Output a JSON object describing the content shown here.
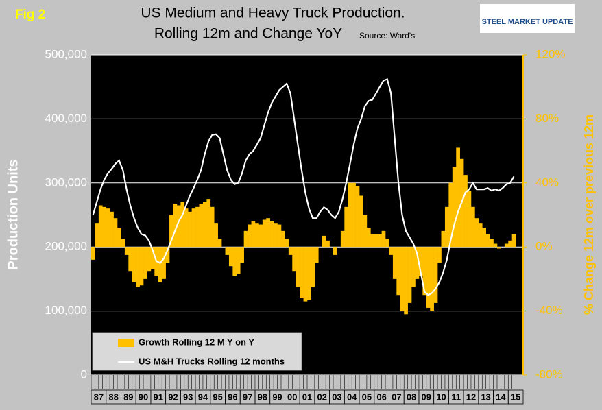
{
  "chart_data": {
    "type": "combo",
    "fig_label": "Fig 2",
    "title": [
      "US Medium and Heavy Truck Production.",
      "Rolling 12m and Change YoY"
    ],
    "source": "Source: Ward's",
    "logo": "STEEL MARKET UPDATE",
    "y_label": "Production Units",
    "y2_label": "% Change 12m over previous 12m",
    "categories": [
      "87",
      null,
      null,
      null,
      "88",
      null,
      null,
      null,
      "89",
      null,
      null,
      null,
      "90",
      null,
      null,
      null,
      "91",
      null,
      null,
      null,
      "92",
      null,
      null,
      null,
      "93",
      null,
      null,
      null,
      "94",
      null,
      null,
      null,
      "95",
      null,
      null,
      null,
      "96",
      null,
      null,
      null,
      "97",
      null,
      null,
      null,
      "98",
      null,
      null,
      null,
      "99",
      null,
      null,
      null,
      "00",
      null,
      null,
      null,
      "01",
      null,
      null,
      null,
      "02",
      null,
      null,
      null,
      "03",
      null,
      null,
      null,
      "04",
      null,
      null,
      null,
      "05",
      null,
      null,
      null,
      "06",
      null,
      null,
      null,
      "07",
      null,
      null,
      null,
      "08",
      null,
      null,
      null,
      "09",
      null,
      null,
      null,
      "10",
      null,
      null,
      null,
      "11",
      null,
      null,
      null,
      "12",
      null,
      null,
      null,
      "13",
      null,
      null,
      null,
      "14",
      null,
      null,
      null,
      "15",
      null
    ],
    "ylim": [
      0,
      500000
    ],
    "yticks": [
      0,
      {
        "value": 100000,
        "label": "100,000"
      },
      {
        "value": 200000,
        "label": "200,000"
      },
      {
        "value": 300000,
        "label": "300,000"
      },
      {
        "value": 400000,
        "label": "400,000"
      },
      {
        "value": 500000,
        "label": "500,000"
      }
    ],
    "y2lim": [
      -80,
      120
    ],
    "y2ticks": [
      {
        "value": -80,
        "label": "-80%"
      },
      {
        "value": -40,
        "label": "-40%"
      },
      {
        "value": 0,
        "label": "0%"
      },
      {
        "value": 40,
        "label": "40%"
      },
      {
        "value": 80,
        "label": "80%"
      },
      {
        "value": 120,
        "label": "120%"
      }
    ],
    "grid": true,
    "legend": "bottom-left",
    "series": [
      {
        "name": "Growth Rolling 12 M Y on Y",
        "type": "bar",
        "axis": "y2",
        "color": "#ffc000",
        "values": [
          -8,
          15,
          26,
          25,
          24,
          22,
          18,
          12,
          5,
          -5,
          -15,
          -22,
          -25,
          -24,
          -20,
          -15,
          -14,
          -18,
          -22,
          -20,
          -10,
          20,
          27,
          26,
          28,
          24,
          22,
          24,
          25,
          27,
          28,
          30,
          25,
          15,
          5,
          0,
          -5,
          -12,
          -18,
          -17,
          -10,
          10,
          14,
          16,
          15,
          14,
          17,
          18,
          16,
          15,
          14,
          10,
          5,
          -5,
          -15,
          -25,
          -32,
          -34,
          -33,
          -25,
          -10,
          0,
          7,
          4,
          0,
          -5,
          0,
          10,
          25,
          40,
          40,
          38,
          32,
          20,
          12,
          8,
          8,
          8,
          10,
          5,
          -5,
          -20,
          -30,
          -40,
          -42,
          -35,
          -25,
          -20,
          -18,
          -30,
          -38,
          -40,
          -35,
          -10,
          10,
          25,
          40,
          50,
          62,
          55,
          45,
          35,
          25,
          18,
          15,
          12,
          8,
          5,
          2,
          -1,
          0,
          2,
          4,
          8
        ]
      },
      {
        "name": "US M&H Trucks Rolling 12 months",
        "type": "line",
        "color": "#ffffff",
        "values": [
          250000,
          270000,
          290000,
          305000,
          315000,
          322000,
          330000,
          335000,
          320000,
          290000,
          265000,
          245000,
          230000,
          220000,
          218000,
          210000,
          195000,
          178000,
          175000,
          182000,
          195000,
          210000,
          225000,
          240000,
          250000,
          265000,
          280000,
          292000,
          305000,
          320000,
          345000,
          365000,
          375000,
          376000,
          370000,
          345000,
          320000,
          305000,
          298000,
          300000,
          315000,
          335000,
          345000,
          350000,
          360000,
          370000,
          390000,
          410000,
          425000,
          435000,
          445000,
          450000,
          455000,
          440000,
          400000,
          360000,
          320000,
          285000,
          260000,
          245000,
          245000,
          255000,
          262000,
          258000,
          250000,
          245000,
          255000,
          275000,
          300000,
          330000,
          360000,
          385000,
          400000,
          420000,
          428000,
          430000,
          440000,
          450000,
          460000,
          462000,
          440000,
          370000,
          300000,
          250000,
          225000,
          215000,
          205000,
          190000,
          160000,
          130000,
          125000,
          128000,
          135000,
          145000,
          160000,
          180000,
          210000,
          235000,
          255000,
          270000,
          285000,
          290000,
          300000,
          290000,
          290000,
          290000,
          292000,
          288000,
          290000,
          288000,
          292000,
          298000,
          300000,
          310000
        ]
      }
    ]
  }
}
